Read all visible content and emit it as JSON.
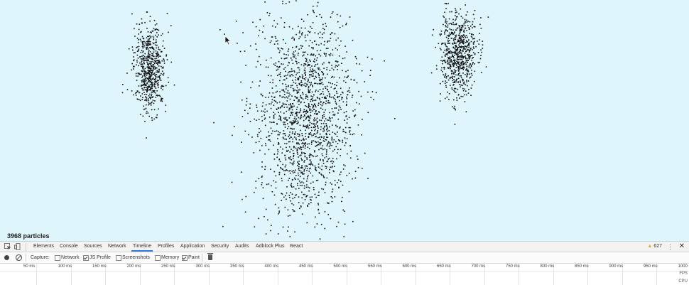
{
  "page": {
    "particle_count": "3968 particles"
  },
  "devtools": {
    "tabs": [
      {
        "label": "Elements",
        "active": false
      },
      {
        "label": "Console",
        "active": false
      },
      {
        "label": "Sources",
        "active": false
      },
      {
        "label": "Network",
        "active": false
      },
      {
        "label": "Timeline",
        "active": true
      },
      {
        "label": "Profiles",
        "active": false
      },
      {
        "label": "Application",
        "active": false
      },
      {
        "label": "Security",
        "active": false
      },
      {
        "label": "Audits",
        "active": false
      },
      {
        "label": "Adblock Plus",
        "active": false
      },
      {
        "label": "React",
        "active": false
      }
    ],
    "warning_count": "627",
    "toolbar": {
      "capture_label": "Capture:",
      "options": [
        {
          "label": "Network",
          "checked": false
        },
        {
          "label": "JS Profile",
          "checked": true
        },
        {
          "label": "Screenshots",
          "checked": false
        },
        {
          "label": "Memory",
          "checked": false
        },
        {
          "label": "Paint",
          "checked": true
        }
      ]
    },
    "ruler": {
      "ticks": [
        "50 ms",
        "100 ms",
        "150 ms",
        "200 ms",
        "250 ms",
        "300 ms",
        "350 ms",
        "400 ms",
        "450 ms",
        "500 ms",
        "550 ms",
        "600 ms",
        "650 ms",
        "700 ms",
        "750 ms",
        "800 ms",
        "850 ms",
        "900 ms",
        "950 ms",
        "1000 ms"
      ],
      "fps_label": "FPS",
      "cpu_label": "CPU"
    }
  },
  "icons": {
    "inspect": "inspect-element-icon",
    "device": "device-toolbar-icon",
    "warning": "warning-icon",
    "more": "more-options-icon",
    "close": "close-icon",
    "record": "record-icon",
    "clear": "clear-icon",
    "trash": "trash-icon"
  },
  "colors": {
    "canvas_bg": "#def5fb",
    "accent": "#3879d9",
    "warning": "#e8a600"
  }
}
